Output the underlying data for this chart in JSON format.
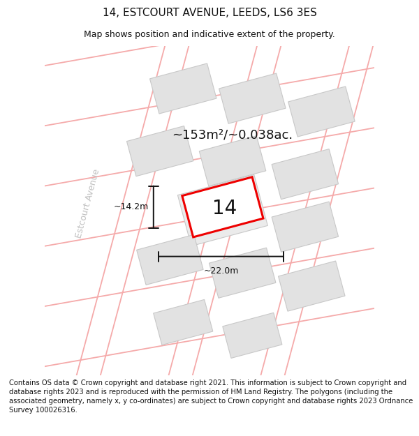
{
  "title": "14, ESTCOURT AVENUE, LEEDS, LS6 3ES",
  "subtitle": "Map shows position and indicative extent of the property.",
  "footer": "Contains OS data © Crown copyright and database right 2021. This information is subject to Crown copyright and database rights 2023 and is reproduced with the permission of HM Land Registry. The polygons (including the associated geometry, namely x, y co-ordinates) are subject to Crown copyright and database rights 2023 Ordnance Survey 100026316.",
  "area_label": "~153m²/~0.038ac.",
  "dim_width": "~22.0m",
  "dim_height": "~14.2m",
  "property_number": "14",
  "street_name": "Estcourt Avenue",
  "bg_color": "#f7f7f7",
  "building_fill": "#e2e2e2",
  "building_edge": "#c8c8c8",
  "street_color": "#f5aaaa",
  "property_fill": "#ffffff",
  "property_color": "#ee0000",
  "dim_color": "#111111",
  "street_text_color": "#c0c0c0",
  "title_fontsize": 11,
  "subtitle_fontsize": 9,
  "footer_fontsize": 7.2,
  "area_fontsize": 13,
  "number_fontsize": 20,
  "dim_fontsize": 9,
  "street_fontsize": 9
}
